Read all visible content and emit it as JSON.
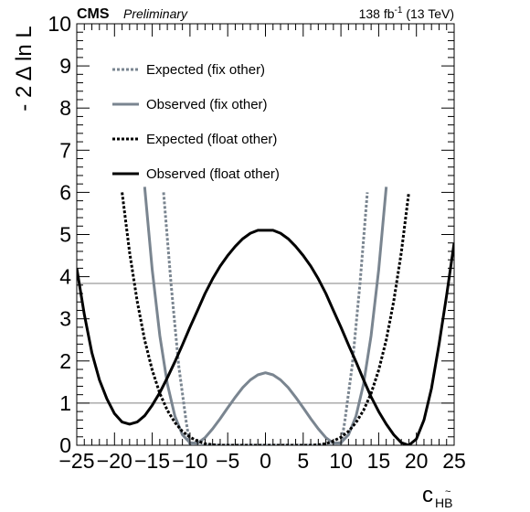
{
  "header": {
    "experiment": "CMS",
    "status": "Preliminary",
    "lumi_value": "138 fb",
    "lumi_exp": "-1",
    "lumi_energy": "(13 TeV)"
  },
  "chart_data": {
    "type": "line",
    "xlabel_main": "c",
    "xlabel_sub": "HB",
    "xlabel_sub_accent": "~",
    "ylabel": "- 2 Δ ln L",
    "xlim": [
      -25,
      25
    ],
    "ylim": [
      0,
      10
    ],
    "xticks": [
      -25,
      -20,
      -15,
      -10,
      -5,
      0,
      5,
      10,
      15,
      20,
      25
    ],
    "xtick_labels": [
      "−25",
      "−20",
      "−15",
      "−10",
      "−5",
      "0",
      "5",
      "10",
      "15",
      "20",
      "25"
    ],
    "yticks": [
      0,
      1,
      2,
      3,
      4,
      5,
      6,
      7,
      8,
      9,
      10
    ],
    "ytick_labels": [
      "0",
      "1",
      "2",
      "3",
      "4",
      "5",
      "6",
      "7",
      "8",
      "9",
      "10"
    ],
    "reference_lines": [
      1,
      3.84
    ],
    "legend_position": "top-left",
    "colors": {
      "gray": "#7a8590",
      "black": "#000000",
      "ref": "#808080"
    },
    "series": [
      {
        "name": "Expected (fix other)",
        "style": "dotted",
        "color": "#7a8590",
        "x": [
          -13.5,
          -12.5,
          -11.5,
          -10.5,
          -10,
          -9,
          -8,
          -7,
          -6,
          -5,
          -4,
          -3,
          -2,
          -1,
          0,
          1,
          2,
          3,
          4,
          5,
          6,
          7,
          8,
          9,
          10,
          10.5,
          11.5,
          12.5,
          13.5
        ],
        "y": [
          6.0,
          3.8,
          1.9,
          0.55,
          0.0,
          0.0,
          0.0,
          0.0,
          0.0,
          0.0,
          0.0,
          0.0,
          0.0,
          0.0,
          0.0,
          0.0,
          0.0,
          0.0,
          0.0,
          0.0,
          0.0,
          0.0,
          0.0,
          0.0,
          0.0,
          0.55,
          1.9,
          3.8,
          6.0
        ]
      },
      {
        "name": "Observed (fix other)",
        "style": "solid",
        "color": "#7a8590",
        "x": [
          -16.0,
          -15.0,
          -14.0,
          -13.0,
          -12.0,
          -11.0,
          -10.0,
          -9.0,
          -8.0,
          -7.0,
          -6.0,
          -5.0,
          -4.0,
          -3.0,
          -2.0,
          -1.0,
          0.0,
          1.0,
          2.0,
          3.0,
          4.0,
          5.0,
          6.0,
          7.0,
          8.0,
          9.0,
          10.0,
          11.0,
          12.0,
          13.0,
          14.0,
          15.0,
          16.0
        ],
        "y": [
          6.13,
          4.16,
          2.6,
          1.46,
          0.69,
          0.25,
          0.06,
          0.05,
          0.18,
          0.39,
          0.63,
          0.89,
          1.14,
          1.37,
          1.55,
          1.67,
          1.72,
          1.67,
          1.55,
          1.37,
          1.14,
          0.89,
          0.63,
          0.39,
          0.18,
          0.05,
          0.06,
          0.25,
          0.69,
          1.46,
          2.6,
          4.16,
          6.13
        ]
      },
      {
        "name": "Expected (float other)",
        "style": "dotted",
        "color": "#000000",
        "x": [
          -19.0,
          -18.0,
          -17.0,
          -16.0,
          -15.0,
          -14.0,
          -13.0,
          -12.0,
          -11.0,
          -10.0,
          -9.0,
          -8.0,
          -7.0,
          -6.0,
          -5.0,
          -4.0,
          -3.0,
          -2.0,
          -1.0,
          0.0,
          1.0,
          2.0,
          3.0,
          4.0,
          5.0,
          6.0,
          7.0,
          8.0,
          9.0,
          10.0,
          11.0,
          12.0,
          13.0,
          14.0,
          15.0,
          16.0,
          17.0,
          18.0,
          19.0
        ],
        "y": [
          6.0,
          4.58,
          3.42,
          2.5,
          1.78,
          1.23,
          0.83,
          0.54,
          0.33,
          0.19,
          0.1,
          0.04,
          0.01,
          0.0,
          0.0,
          0.0,
          0.0,
          0.0,
          0.0,
          0.0,
          0.0,
          0.0,
          0.0,
          0.0,
          0.0,
          0.0,
          0.01,
          0.04,
          0.1,
          0.19,
          0.33,
          0.54,
          0.83,
          1.23,
          1.78,
          2.5,
          3.42,
          4.58,
          6.0
        ]
      },
      {
        "name": "Observed (float other)",
        "style": "solid",
        "color": "#000000",
        "x": [
          -25.0,
          -24.0,
          -23.0,
          -22.0,
          -21.0,
          -20.0,
          -19.0,
          -18.0,
          -17.0,
          -16.0,
          -15.0,
          -14.0,
          -13.0,
          -12.0,
          -11.0,
          -10.0,
          -9.0,
          -8.0,
          -7.0,
          -6.0,
          -5.0,
          -4.0,
          -3.0,
          -2.0,
          -1.0,
          0.0,
          1.0,
          2.0,
          3.0,
          4.0,
          5.0,
          6.0,
          7.0,
          8.0,
          9.0,
          10.0,
          11.0,
          12.0,
          13.0,
          14.0,
          15.0,
          16.0,
          17.0,
          18.0,
          19.0,
          20.0,
          21.0,
          22.0,
          23.0,
          24.0,
          25.0
        ],
        "y": [
          4.2,
          3.1,
          2.2,
          1.55,
          1.1,
          0.75,
          0.55,
          0.5,
          0.55,
          0.7,
          0.95,
          1.25,
          1.6,
          1.98,
          2.38,
          2.8,
          3.2,
          3.6,
          3.95,
          4.25,
          4.5,
          4.72,
          4.9,
          5.03,
          5.1,
          5.1,
          5.1,
          5.03,
          4.9,
          4.72,
          4.5,
          4.25,
          3.95,
          3.6,
          3.2,
          2.8,
          2.38,
          1.98,
          1.55,
          1.15,
          0.8,
          0.5,
          0.25,
          0.06,
          0.0,
          0.15,
          0.6,
          1.35,
          2.4,
          3.55,
          4.8
        ]
      }
    ]
  }
}
